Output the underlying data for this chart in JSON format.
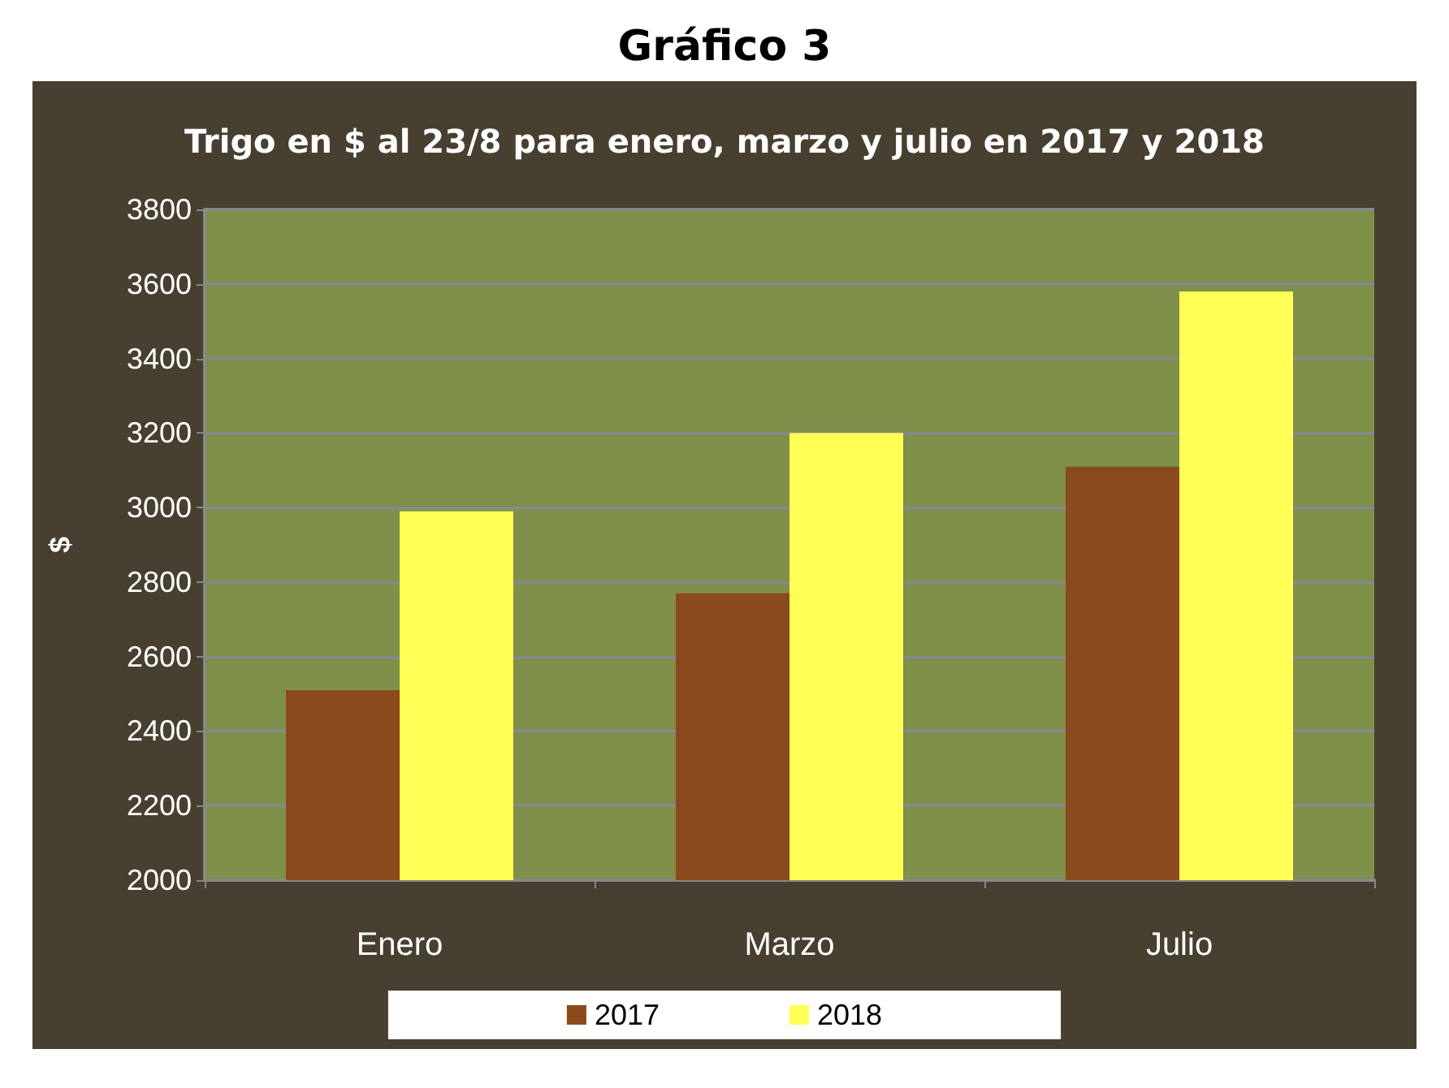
{
  "chart_data": {
    "type": "bar",
    "title": "Gráfico 3",
    "subtitle": "Trigo en $ al 23/8 para enero, marzo y julio en 2017 y 2018",
    "ylabel": "$",
    "categories": [
      "Enero",
      "Marzo",
      "Julio"
    ],
    "series": [
      {
        "name": "2017",
        "color": "#8b4a1c",
        "values": [
          2510,
          2770,
          3110
        ]
      },
      {
        "name": "2018",
        "color": "#ffff55",
        "values": [
          2990,
          3200,
          3580
        ]
      }
    ],
    "ylim": [
      2000,
      3800
    ],
    "yticks": [
      2000,
      2200,
      2400,
      2600,
      2800,
      3000,
      3200,
      3400,
      3600,
      3800
    ],
    "grid": "y",
    "legend": "bottom"
  }
}
